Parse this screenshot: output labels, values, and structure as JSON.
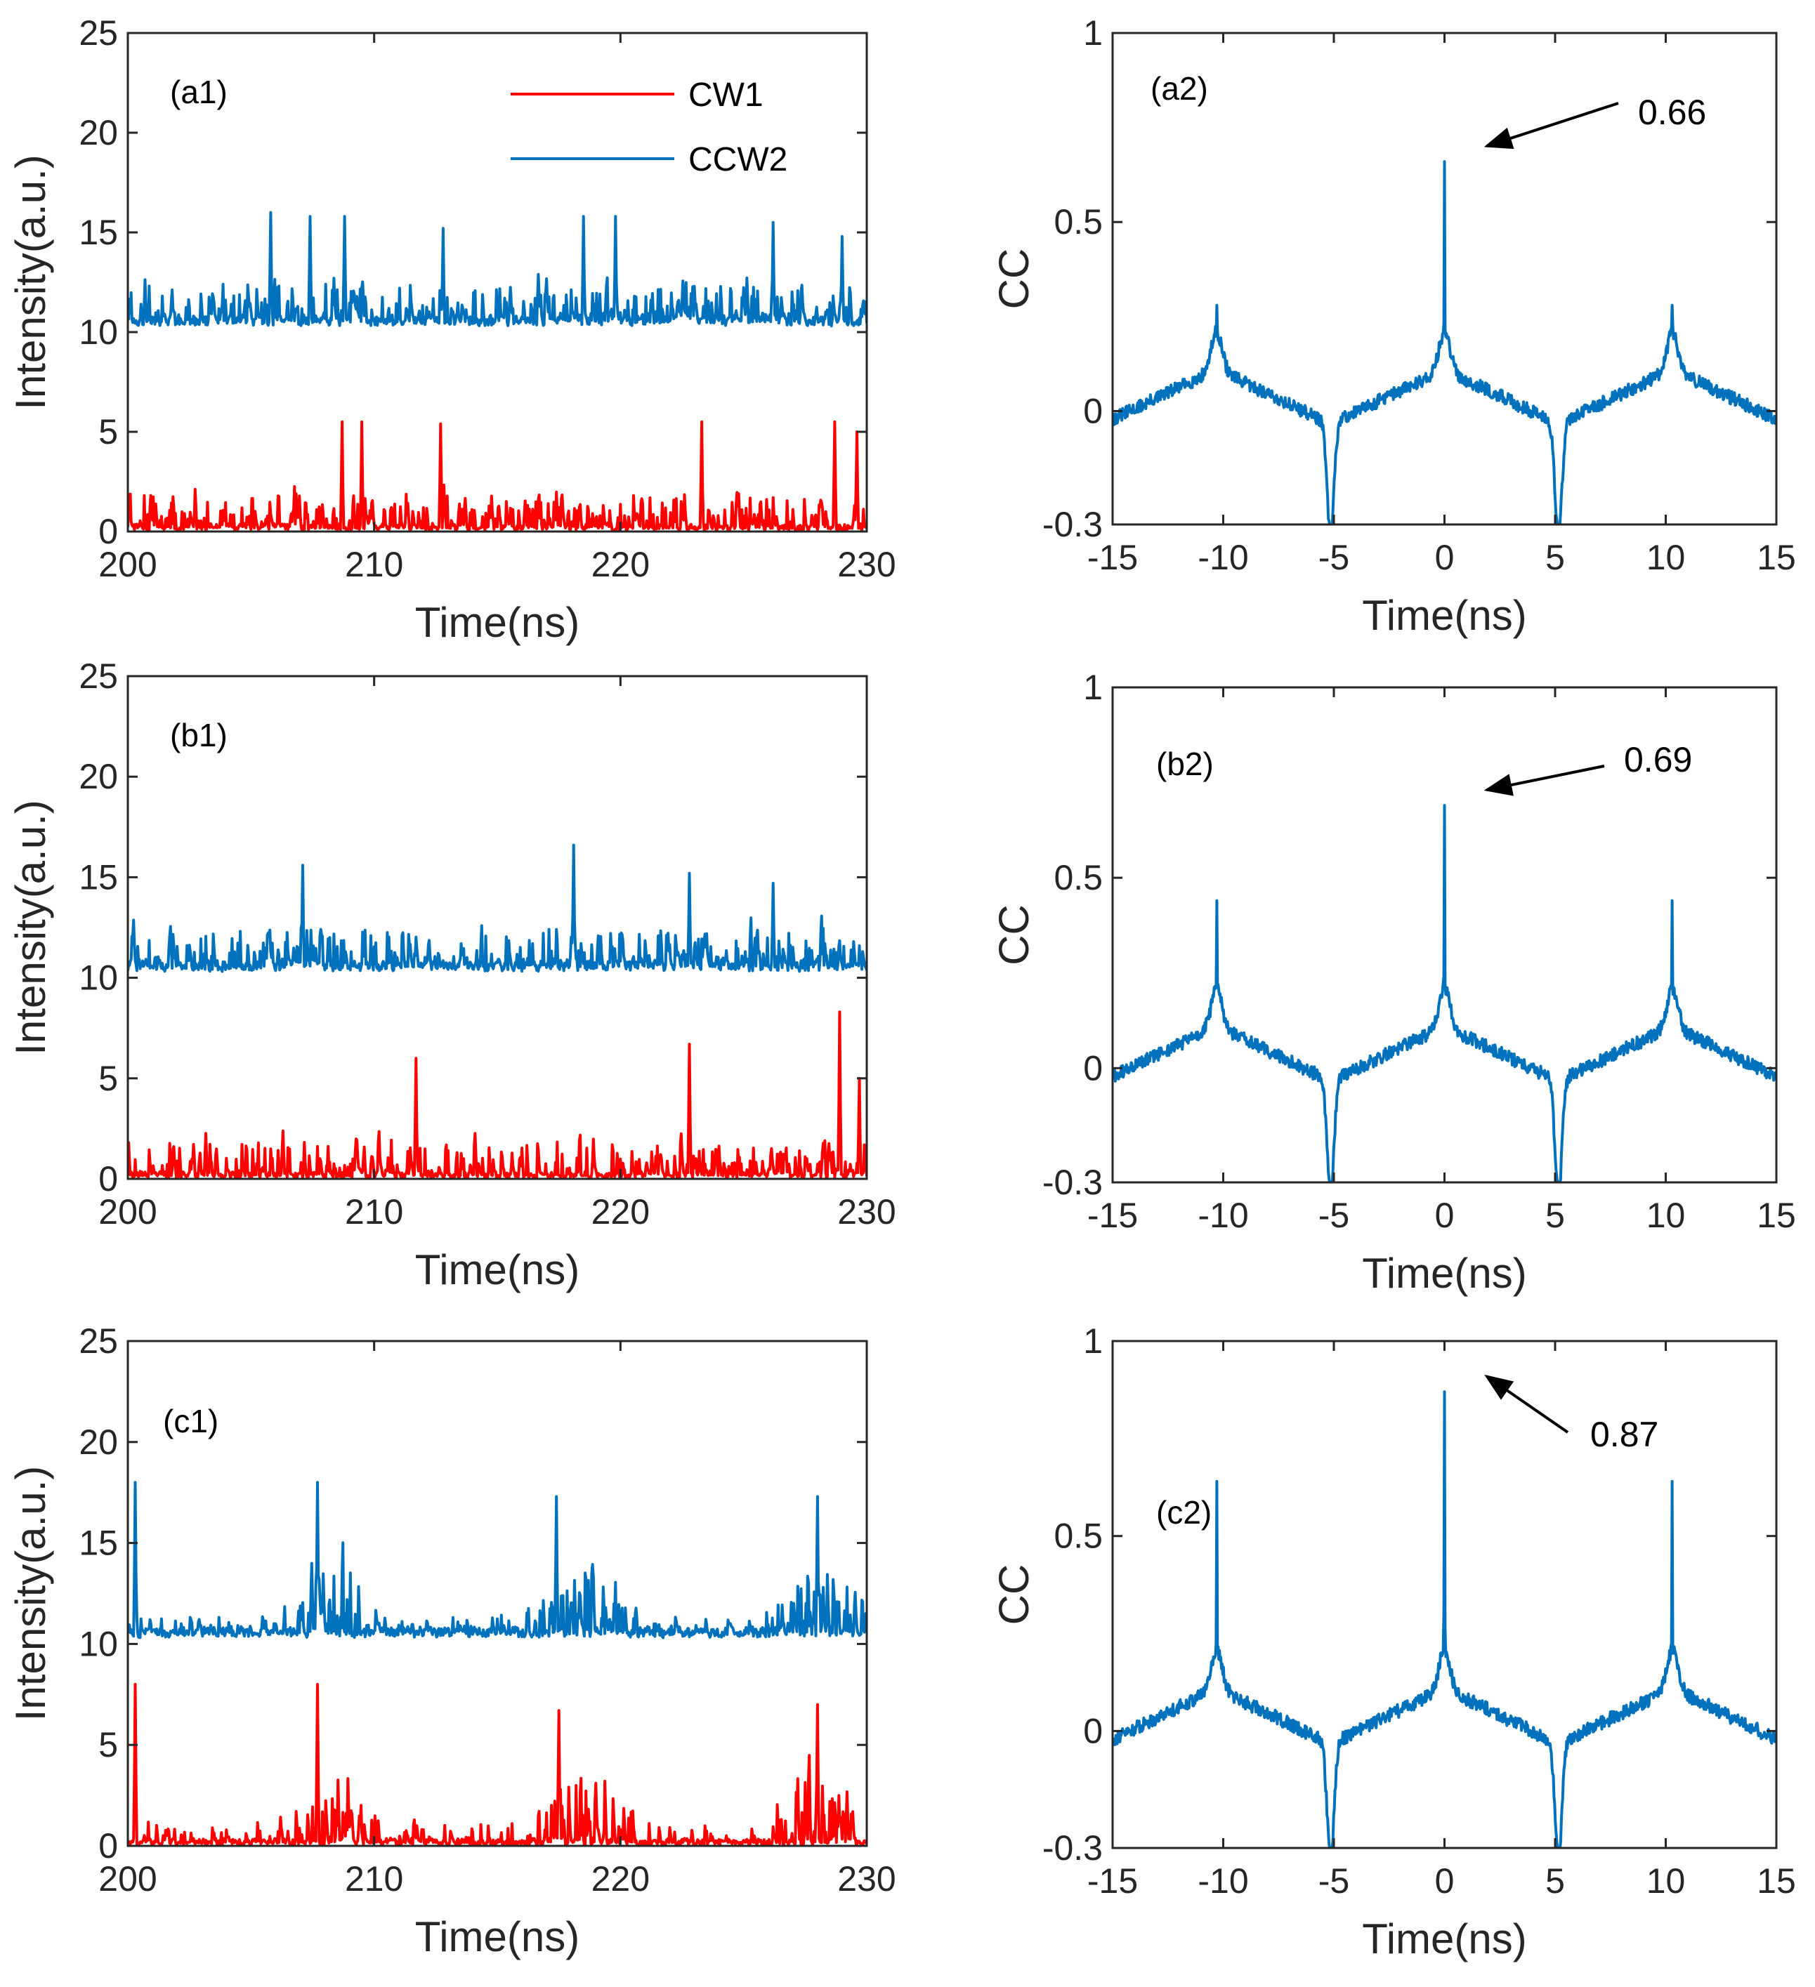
{
  "chart_data": [
    {
      "id": "a1",
      "type": "line",
      "panel_label": "(a1)",
      "xlabel": "Time(ns)",
      "ylabel": "Intensity(a.u.)",
      "xlim": [
        200,
        230
      ],
      "ylim": [
        0,
        25
      ],
      "xticks": [
        "200",
        "210",
        "220",
        "230"
      ],
      "yticks": [
        "0",
        "5",
        "10",
        "15",
        "20",
        "25"
      ],
      "legend": {
        "placement": "top-right",
        "entries": [
          "CW1",
          "CCW2"
        ]
      },
      "series": [
        {
          "name": "CW1",
          "color": "#ff0000",
          "kind": "cw",
          "seed": 11,
          "baseline": 0,
          "burst": false,
          "maxes": [
            [
              208.7,
              5.5
            ],
            [
              209.5,
              5.5
            ],
            [
              212.7,
              5.4
            ],
            [
              223.3,
              5.5
            ],
            [
              228.7,
              5.5
            ],
            [
              229.6,
              5.0
            ]
          ]
        },
        {
          "name": "CCW2",
          "color": "#0072bd",
          "kind": "ccw",
          "seed": 23,
          "baseline": 10.3,
          "burst": false,
          "maxes": [
            [
              205.8,
              16.0
            ],
            [
              207.4,
              15.8
            ],
            [
              208.8,
              15.8
            ],
            [
              212.8,
              15.2
            ],
            [
              218.5,
              15.8
            ],
            [
              219.8,
              15.8
            ],
            [
              226.2,
              15.5
            ],
            [
              229.0,
              14.8
            ]
          ]
        }
      ]
    },
    {
      "id": "a2",
      "type": "line",
      "panel_label": "(a2)",
      "xlabel": "Time(ns)",
      "ylabel": "CC",
      "xlim": [
        -15,
        15
      ],
      "ylim": [
        -0.3,
        1
      ],
      "xticks": [
        "-15",
        "-10",
        "-5",
        "0",
        "5",
        "10",
        "15"
      ],
      "yticks": [
        "-0.3",
        "0",
        "0.5",
        "1"
      ],
      "annotation": {
        "text": "0.66",
        "target": [
          0,
          0.66
        ]
      },
      "series": [
        {
          "name": "CC",
          "color": "#0072bd",
          "center_peak": 0.66,
          "side_peak": 0.28,
          "min_value": -0.3,
          "seed": 31
        }
      ]
    },
    {
      "id": "b1",
      "type": "line",
      "panel_label": "(b1)",
      "xlabel": "Time(ns)",
      "ylabel": "Intensity(a.u.)",
      "xlim": [
        200,
        230
      ],
      "ylim": [
        0,
        25
      ],
      "xticks": [
        "200",
        "210",
        "220",
        "230"
      ],
      "yticks": [
        "0",
        "5",
        "10",
        "15",
        "20",
        "25"
      ],
      "series": [
        {
          "name": "CW1",
          "color": "#ff0000",
          "kind": "cw",
          "seed": 41,
          "baseline": 0,
          "burst": false,
          "maxes": [
            [
              211.7,
              6.0
            ],
            [
              222.8,
              6.7
            ],
            [
              228.9,
              8.3
            ],
            [
              229.7,
              5.0
            ]
          ]
        },
        {
          "name": "CCW2",
          "color": "#0072bd",
          "kind": "ccw",
          "seed": 53,
          "baseline": 10.3,
          "burst": false,
          "maxes": [
            [
              207.1,
              15.6
            ],
            [
              218.1,
              16.6
            ],
            [
              222.8,
              15.2
            ],
            [
              226.2,
              14.7
            ]
          ]
        }
      ]
    },
    {
      "id": "b2",
      "type": "line",
      "panel_label": "(b2)",
      "xlabel": "Time(ns)",
      "ylabel": "CC",
      "xlim": [
        -15,
        15
      ],
      "ylim": [
        -0.3,
        1
      ],
      "xticks": [
        "-15",
        "-10",
        "-5",
        "0",
        "5",
        "10",
        "15"
      ],
      "yticks": [
        "-0.3",
        "0",
        "0.5",
        "1"
      ],
      "annotation": {
        "text": "0.69",
        "target": [
          0,
          0.69
        ]
      },
      "series": [
        {
          "name": "CC",
          "color": "#0072bd",
          "center_peak": 0.69,
          "side_peak": 0.44,
          "min_value": -0.3,
          "seed": 61
        }
      ]
    },
    {
      "id": "c1",
      "type": "line",
      "panel_label": "(c1)",
      "xlabel": "Time(ns)",
      "ylabel": "Intensity(a.u.)",
      "xlim": [
        200,
        230
      ],
      "ylim": [
        0,
        25
      ],
      "xticks": [
        "200",
        "210",
        "220",
        "230"
      ],
      "yticks": [
        "0",
        "5",
        "10",
        "15",
        "20",
        "25"
      ],
      "series": [
        {
          "name": "CW1",
          "color": "#ff0000",
          "kind": "cw",
          "seed": 71,
          "baseline": 0,
          "burst": true,
          "maxes": [
            [
              200.3,
              8.0
            ],
            [
              207.7,
              8.0
            ],
            [
              217.5,
              6.7
            ],
            [
              228.0,
              7.0
            ]
          ]
        },
        {
          "name": "CCW2",
          "color": "#0072bd",
          "kind": "ccw",
          "seed": 83,
          "baseline": 10.3,
          "burst": true,
          "maxes": [
            [
              200.3,
              18.0
            ],
            [
              207.7,
              18.0
            ],
            [
              217.4,
              17.3
            ],
            [
              228.0,
              17.3
            ]
          ]
        }
      ]
    },
    {
      "id": "c2",
      "type": "line",
      "panel_label": "(c2)",
      "xlabel": "Time(ns)",
      "ylabel": "CC",
      "xlim": [
        -15,
        15
      ],
      "ylim": [
        -0.3,
        1
      ],
      "xticks": [
        "-15",
        "-10",
        "-5",
        "0",
        "5",
        "10",
        "15"
      ],
      "yticks": [
        "-0.3",
        "0",
        "0.5",
        "1"
      ],
      "annotation": {
        "text": "0.87",
        "target": [
          0,
          0.87
        ]
      },
      "series": [
        {
          "name": "CC",
          "color": "#0072bd",
          "center_peak": 0.87,
          "side_peak": 0.64,
          "min_value": -0.3,
          "seed": 91
        }
      ]
    }
  ]
}
